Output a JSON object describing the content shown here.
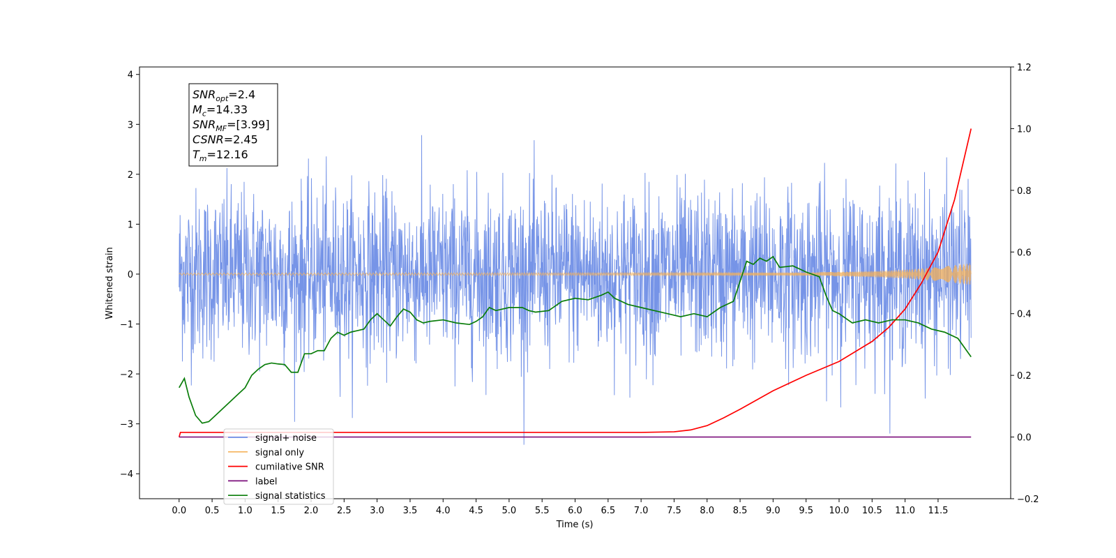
{
  "chart_data": {
    "type": "line",
    "xlabel": "Time (s)",
    "ylabel_left": "Whitened strain",
    "ylabel_right": "",
    "xlim": [
      -0.6,
      12.6
    ],
    "ylim_left": [
      -4.5,
      4.15
    ],
    "ylim_right": [
      -0.2,
      1.2
    ],
    "x_ticks": [
      "0.0",
      "0.5",
      "1.0",
      "1.5",
      "2.0",
      "2.5",
      "3.0",
      "3.5",
      "4.0",
      "4.5",
      "5.0",
      "5.5",
      "6.0",
      "6.5",
      "7.0",
      "7.5",
      "8.0",
      "8.5",
      "9.0",
      "9.5",
      "10.0",
      "10.5",
      "11.0",
      "11.5"
    ],
    "y_ticks_left": [
      "4",
      "3",
      "2",
      "1",
      "0",
      "−1",
      "−2",
      "−3",
      "−4"
    ],
    "y_ticks_right": [
      "1.2",
      "1.0",
      "0.8",
      "0.6",
      "0.4",
      "0.2",
      "0.0",
      "−0.2"
    ],
    "grid": false,
    "legend_position": "bottom-left",
    "annotation": {
      "lines": [
        {
          "sym": "SNR",
          "sub": "opt",
          "val": "=2.4"
        },
        {
          "sym": "M",
          "sub": "c",
          "val": "=14.33"
        },
        {
          "sym": "SNR",
          "sub": "MF",
          "val": "=[3.99]"
        },
        {
          "sym": "CSNR",
          "sub": "",
          "val": "=2.45"
        },
        {
          "sym": "T",
          "sub": "m",
          "val": "=12.16"
        }
      ]
    },
    "series": [
      {
        "name": "signal+ noise",
        "axis": "left",
        "color": "#6f8ee6",
        "noise": {
          "x_start": 0.0,
          "x_end": 12.0,
          "std": 0.85,
          "clip": [
            -3.75,
            3.7
          ]
        }
      },
      {
        "name": "signal only",
        "axis": "left",
        "color": "#f5b25a",
        "envelope": {
          "x": [
            0,
            9.5,
            10.5,
            11.0,
            11.5,
            12.0
          ],
          "amp": [
            0.02,
            0.03,
            0.06,
            0.09,
            0.14,
            0.22
          ]
        }
      },
      {
        "name": "cumilative SNR",
        "axis": "right",
        "color": "#ff0000",
        "x": [
          0.0,
          0.02,
          0.5,
          1.0,
          2.0,
          3.0,
          4.0,
          5.0,
          6.0,
          7.0,
          7.5,
          7.75,
          8.0,
          8.25,
          8.5,
          8.75,
          9.0,
          9.5,
          10.0,
          10.5,
          10.75,
          11.0,
          11.25,
          11.5,
          11.75,
          12.0
        ],
        "y": [
          0.0,
          0.015,
          0.015,
          0.015,
          0.015,
          0.015,
          0.015,
          0.015,
          0.015,
          0.015,
          0.017,
          0.023,
          0.037,
          0.062,
          0.09,
          0.12,
          0.15,
          0.2,
          0.245,
          0.31,
          0.355,
          0.415,
          0.5,
          0.6,
          0.77,
          1.0
        ]
      },
      {
        "name": "label",
        "axis": "right",
        "color": "#7b0e7b",
        "x": [
          0.0,
          12.0
        ],
        "y": [
          0.0,
          0.0
        ]
      },
      {
        "name": "signal statistics",
        "axis": "right",
        "color": "#0a7d0a",
        "x": [
          0.0,
          0.08,
          0.15,
          0.25,
          0.35,
          0.45,
          0.6,
          0.8,
          0.9,
          1.0,
          1.1,
          1.2,
          1.3,
          1.4,
          1.5,
          1.6,
          1.7,
          1.8,
          1.9,
          2.0,
          2.1,
          2.2,
          2.3,
          2.4,
          2.5,
          2.6,
          2.7,
          2.8,
          2.9,
          3.0,
          3.1,
          3.2,
          3.3,
          3.4,
          3.5,
          3.6,
          3.7,
          3.8,
          4.0,
          4.2,
          4.4,
          4.5,
          4.6,
          4.7,
          4.8,
          5.0,
          5.2,
          5.3,
          5.4,
          5.6,
          5.8,
          6.0,
          6.2,
          6.4,
          6.5,
          6.6,
          6.7,
          6.8,
          7.0,
          7.2,
          7.4,
          7.6,
          7.8,
          8.0,
          8.2,
          8.4,
          8.6,
          8.7,
          8.8,
          8.9,
          9.0,
          9.1,
          9.3,
          9.5,
          9.7,
          9.8,
          9.9,
          10.0,
          10.2,
          10.4,
          10.6,
          10.8,
          11.0,
          11.2,
          11.4,
          11.6,
          11.8,
          12.0
        ],
        "y": [
          0.16,
          0.19,
          0.13,
          0.07,
          0.045,
          0.05,
          0.08,
          0.12,
          0.14,
          0.16,
          0.2,
          0.22,
          0.235,
          0.24,
          0.237,
          0.235,
          0.21,
          0.21,
          0.27,
          0.27,
          0.28,
          0.28,
          0.32,
          0.34,
          0.33,
          0.34,
          0.345,
          0.35,
          0.38,
          0.4,
          0.38,
          0.36,
          0.39,
          0.415,
          0.405,
          0.38,
          0.37,
          0.375,
          0.38,
          0.37,
          0.365,
          0.375,
          0.39,
          0.42,
          0.41,
          0.42,
          0.42,
          0.41,
          0.405,
          0.41,
          0.44,
          0.45,
          0.445,
          0.46,
          0.47,
          0.45,
          0.44,
          0.43,
          0.42,
          0.41,
          0.4,
          0.39,
          0.4,
          0.39,
          0.42,
          0.44,
          0.57,
          0.56,
          0.58,
          0.57,
          0.585,
          0.55,
          0.555,
          0.535,
          0.52,
          0.46,
          0.41,
          0.4,
          0.37,
          0.38,
          0.37,
          0.38,
          0.38,
          0.37,
          0.35,
          0.34,
          0.32,
          0.26
        ]
      }
    ]
  }
}
